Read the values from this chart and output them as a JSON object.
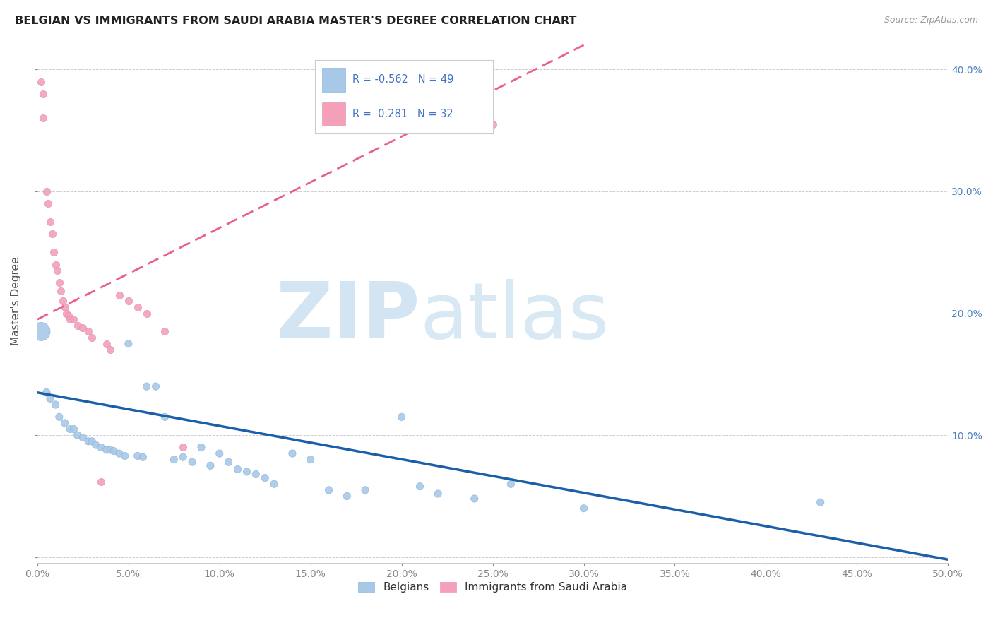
{
  "title": "BELGIAN VS IMMIGRANTS FROM SAUDI ARABIA MASTER'S DEGREE CORRELATION CHART",
  "source": "Source: ZipAtlas.com",
  "ylabel": "Master's Degree",
  "xlim": [
    0.0,
    0.5
  ],
  "ylim": [
    -0.005,
    0.425
  ],
  "xticks": [
    0.0,
    0.05,
    0.1,
    0.15,
    0.2,
    0.25,
    0.3,
    0.35,
    0.4,
    0.45,
    0.5
  ],
  "yticks": [
    0.0,
    0.1,
    0.2,
    0.3,
    0.4
  ],
  "ytick_labels_right": [
    "",
    "10.0%",
    "20.0%",
    "30.0%",
    "40.0%"
  ],
  "xtick_labels": [
    "0.0%",
    "",
    "",
    "",
    "",
    "",
    "",
    "",
    "",
    "",
    "50.0%"
  ],
  "belgian_color": "#A8C8E8",
  "saudi_color": "#F4A0B8",
  "belgian_line_color": "#1A5FA8",
  "saudi_line_color": "#E86090",
  "legend_R_belgian": "-0.562",
  "legend_N_belgian": "49",
  "legend_R_saudi": "0.281",
  "legend_N_saudi": "32",
  "belgians_label": "Belgians",
  "saudi_label": "Immigrants from Saudi Arabia",
  "belgians_x": [
    0.005,
    0.007,
    0.01,
    0.012,
    0.015,
    0.018,
    0.02,
    0.022,
    0.025,
    0.028,
    0.03,
    0.032,
    0.035,
    0.038,
    0.04,
    0.042,
    0.045,
    0.048,
    0.05,
    0.055,
    0.058,
    0.06,
    0.065,
    0.07,
    0.075,
    0.08,
    0.085,
    0.09,
    0.095,
    0.1,
    0.105,
    0.11,
    0.115,
    0.12,
    0.125,
    0.13,
    0.14,
    0.15,
    0.16,
    0.17,
    0.18,
    0.2,
    0.21,
    0.22,
    0.24,
    0.26,
    0.3,
    0.43,
    0.002
  ],
  "belgians_y": [
    0.135,
    0.13,
    0.125,
    0.115,
    0.11,
    0.105,
    0.105,
    0.1,
    0.098,
    0.095,
    0.095,
    0.092,
    0.09,
    0.088,
    0.088,
    0.087,
    0.085,
    0.083,
    0.175,
    0.083,
    0.082,
    0.14,
    0.14,
    0.115,
    0.08,
    0.082,
    0.078,
    0.09,
    0.075,
    0.085,
    0.078,
    0.072,
    0.07,
    0.068,
    0.065,
    0.06,
    0.085,
    0.08,
    0.055,
    0.05,
    0.055,
    0.115,
    0.058,
    0.052,
    0.048,
    0.06,
    0.04,
    0.045,
    0.185
  ],
  "belgians_size": [
    60,
    55,
    55,
    55,
    55,
    55,
    55,
    55,
    55,
    55,
    55,
    55,
    55,
    55,
    55,
    55,
    55,
    55,
    55,
    55,
    55,
    55,
    55,
    55,
    55,
    55,
    55,
    55,
    55,
    55,
    55,
    55,
    55,
    55,
    55,
    55,
    55,
    55,
    55,
    55,
    55,
    55,
    55,
    55,
    55,
    55,
    55,
    55,
    350
  ],
  "saudi_x": [
    0.002,
    0.003,
    0.005,
    0.006,
    0.007,
    0.008,
    0.009,
    0.01,
    0.011,
    0.012,
    0.013,
    0.014,
    0.015,
    0.016,
    0.017,
    0.018,
    0.02,
    0.022,
    0.025,
    0.028,
    0.03,
    0.035,
    0.038,
    0.04,
    0.045,
    0.05,
    0.055,
    0.06,
    0.07,
    0.08,
    0.003,
    0.25
  ],
  "saudi_y": [
    0.39,
    0.38,
    0.3,
    0.29,
    0.275,
    0.265,
    0.25,
    0.24,
    0.235,
    0.225,
    0.218,
    0.21,
    0.205,
    0.2,
    0.198,
    0.195,
    0.195,
    0.19,
    0.188,
    0.185,
    0.18,
    0.062,
    0.175,
    0.17,
    0.215,
    0.21,
    0.205,
    0.2,
    0.185,
    0.09,
    0.36,
    0.355
  ],
  "saudi_size": [
    55,
    55,
    55,
    55,
    55,
    55,
    55,
    55,
    55,
    55,
    55,
    55,
    55,
    55,
    55,
    55,
    55,
    55,
    55,
    55,
    55,
    55,
    55,
    55,
    55,
    55,
    55,
    55,
    55,
    55,
    55,
    55
  ],
  "blue_line_x0": 0.0,
  "blue_line_y0": 0.135,
  "blue_line_x1": 0.5,
  "blue_line_y1": -0.002,
  "pink_line_x0": 0.0,
  "pink_line_y0": 0.195,
  "pink_line_x1": 0.3,
  "pink_line_y1": 0.42
}
